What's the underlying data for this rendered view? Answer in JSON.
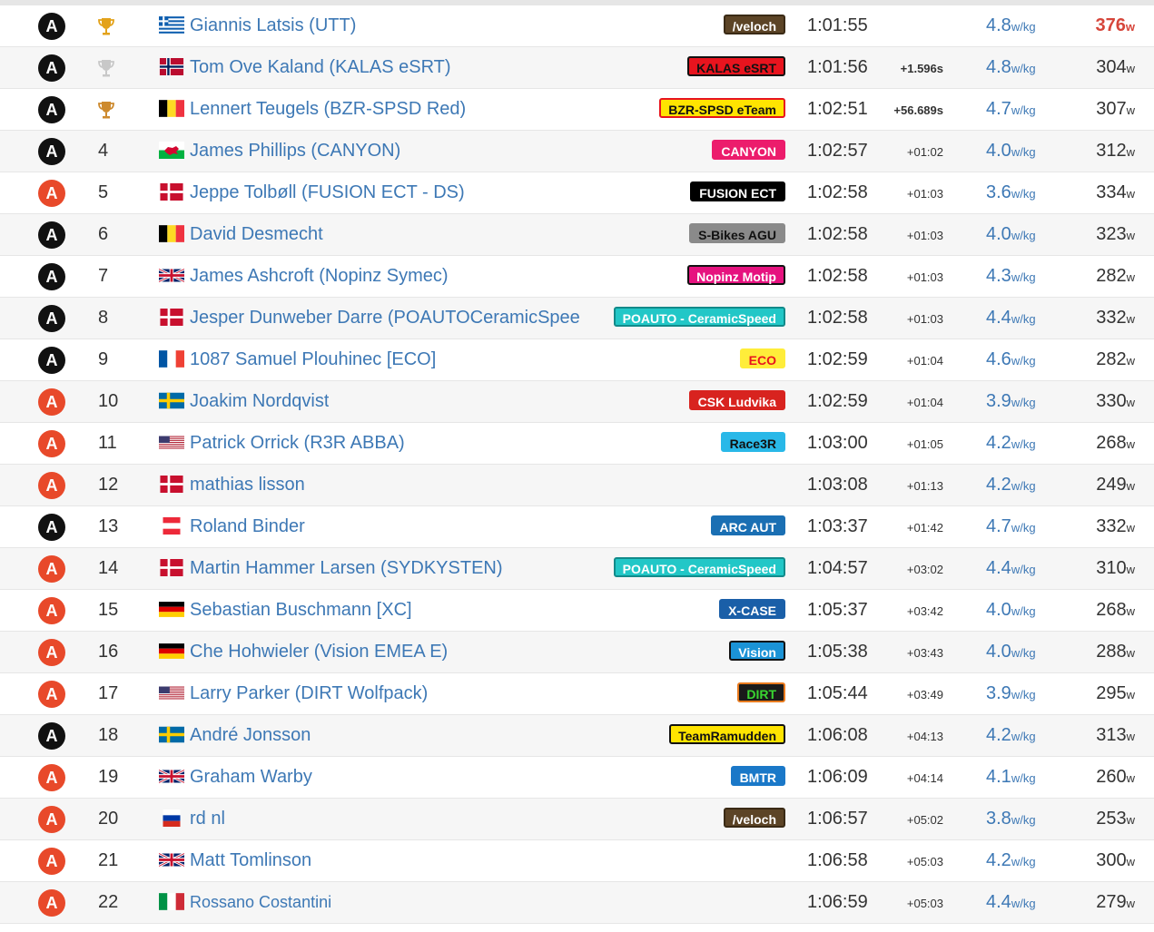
{
  "unit_wkg": "w/kg",
  "unit_w": "w",
  "colors": {
    "link": "#3d78b5",
    "cat_black": "#111111",
    "cat_orange": "#e8492a",
    "gold": "#e3a21a",
    "silver": "#c8c8c8",
    "bronze": "#cd8a2e"
  },
  "rows": [
    {
      "cat": "A",
      "cat_color": "black",
      "pos": "",
      "medal": "gold",
      "flag": "greece",
      "name": "Giannis Latsis (UTT)",
      "team": "/veloch",
      "team_bg": "#5c4426",
      "team_fg": "#ffffff",
      "team_border": "#3a2a15",
      "time": "1:01:55",
      "gap": "",
      "gap_bold": false,
      "wkg": "4.8",
      "watts": "376",
      "watts_red": true
    },
    {
      "cat": "A",
      "cat_color": "black",
      "pos": "",
      "medal": "silver",
      "flag": "norway",
      "name": "Tom Ove Kaland (KALAS eSRT)",
      "team": "KALAS eSRT",
      "team_bg": "#e8141e",
      "team_fg": "#111111",
      "team_border": "#111111",
      "time": "1:01:56",
      "gap": "+1.596s",
      "gap_bold": true,
      "wkg": "4.8",
      "watts": "304",
      "watts_red": false
    },
    {
      "cat": "A",
      "cat_color": "black",
      "pos": "",
      "medal": "bronze",
      "flag": "belgium",
      "name": "Lennert Teugels (BZR-SPSD Red)",
      "team": "BZR-SPSD eTeam",
      "team_bg": "#ffe400",
      "team_fg": "#111111",
      "team_border": "#e8141e",
      "time": "1:02:51",
      "gap": "+56.689s",
      "gap_bold": true,
      "wkg": "4.7",
      "watts": "307",
      "watts_red": false
    },
    {
      "cat": "A",
      "cat_color": "black",
      "pos": "4",
      "medal": "",
      "flag": "wales",
      "name": "James Phillips (CANYON)",
      "team": "CANYON",
      "team_bg": "#ec1c6c",
      "team_fg": "#ffffff",
      "team_border": "#ec1c6c",
      "time": "1:02:57",
      "gap": "+01:02",
      "gap_bold": false,
      "wkg": "4.0",
      "watts": "312",
      "watts_red": false
    },
    {
      "cat": "A",
      "cat_color": "orange",
      "pos": "5",
      "medal": "",
      "flag": "denmark",
      "name": "Jeppe Tolbøll (FUSION ECT - DS)",
      "team": "FUSION ECT",
      "team_bg": "#000000",
      "team_fg": "#ffffff",
      "team_border": "#000000",
      "time": "1:02:58",
      "gap": "+01:03",
      "gap_bold": false,
      "wkg": "3.6",
      "watts": "334",
      "watts_red": false
    },
    {
      "cat": "A",
      "cat_color": "black",
      "pos": "6",
      "medal": "",
      "flag": "belgium",
      "name": "David Desmecht",
      "team": "S-Bikes AGU",
      "team_bg": "#8a8a8a",
      "team_fg": "#111111",
      "team_border": "#8a8a8a",
      "time": "1:02:58",
      "gap": "+01:03",
      "gap_bold": false,
      "wkg": "4.0",
      "watts": "323",
      "watts_red": false
    },
    {
      "cat": "A",
      "cat_color": "black",
      "pos": "7",
      "medal": "",
      "flag": "uk",
      "name": "James Ashcroft (Nopinz Symec)",
      "team": "Nopinz Motip",
      "team_bg": "#e6127f",
      "team_fg": "#ffffff",
      "team_border": "#111111",
      "time": "1:02:58",
      "gap": "+01:03",
      "gap_bold": false,
      "wkg": "4.3",
      "watts": "282",
      "watts_red": false
    },
    {
      "cat": "A",
      "cat_color": "black",
      "pos": "8",
      "medal": "",
      "flag": "denmark",
      "name": "Jesper Dunweber Darre (POAUTOCeramicSpee",
      "team": "POAUTO - CeramicSpeed",
      "team_bg": "#22c7c7",
      "team_fg": "#ffffff",
      "team_border": "#128a8a",
      "time": "1:02:58",
      "gap": "+01:03",
      "gap_bold": false,
      "wkg": "4.4",
      "watts": "332",
      "watts_red": false
    },
    {
      "cat": "A",
      "cat_color": "black",
      "pos": "9",
      "medal": "",
      "flag": "france",
      "name": "1087 Samuel Plouhinec [ECO]",
      "team": "ECO",
      "team_bg": "#ffed3a",
      "team_fg": "#e8141e",
      "team_border": "#ffed3a",
      "time": "1:02:59",
      "gap": "+01:04",
      "gap_bold": false,
      "wkg": "4.6",
      "watts": "282",
      "watts_red": false
    },
    {
      "cat": "A",
      "cat_color": "orange",
      "pos": "10",
      "medal": "",
      "flag": "sweden",
      "name": "Joakim Nordqvist",
      "team": "CSK Ludvika",
      "team_bg": "#d8231f",
      "team_fg": "#ffffff",
      "team_border": "#d8231f",
      "time": "1:02:59",
      "gap": "+01:04",
      "gap_bold": false,
      "wkg": "3.9",
      "watts": "330",
      "watts_red": false
    },
    {
      "cat": "A",
      "cat_color": "orange",
      "pos": "11",
      "medal": "",
      "flag": "usa",
      "name": "Patrick Orrick (R3R ABBA)",
      "team": "Race3R",
      "team_bg": "#29b8e8",
      "team_fg": "#111111",
      "team_border": "#29b8e8",
      "time": "1:03:00",
      "gap": "+01:05",
      "gap_bold": false,
      "wkg": "4.2",
      "watts": "268",
      "watts_red": false
    },
    {
      "cat": "A",
      "cat_color": "orange",
      "pos": "12",
      "medal": "",
      "flag": "denmark",
      "name": "mathias lisson",
      "team": "",
      "team_bg": "",
      "team_fg": "",
      "team_border": "",
      "time": "1:03:08",
      "gap": "+01:13",
      "gap_bold": false,
      "wkg": "4.2",
      "watts": "249",
      "watts_red": false
    },
    {
      "cat": "A",
      "cat_color": "black",
      "pos": "13",
      "medal": "",
      "flag": "austria",
      "name": "Roland Binder",
      "team": "ARC AUT",
      "team_bg": "#1a6fb3",
      "team_fg": "#ffffff",
      "team_border": "#1a6fb3",
      "time": "1:03:37",
      "gap": "+01:42",
      "gap_bold": false,
      "wkg": "4.7",
      "watts": "332",
      "watts_red": false
    },
    {
      "cat": "A",
      "cat_color": "orange",
      "pos": "14",
      "medal": "",
      "flag": "denmark",
      "name": "Martin Hammer Larsen (SYDKYSTEN)",
      "team": "POAUTO - CeramicSpeed",
      "team_bg": "#22c7c7",
      "team_fg": "#ffffff",
      "team_border": "#128a8a",
      "time": "1:04:57",
      "gap": "+03:02",
      "gap_bold": false,
      "wkg": "4.4",
      "watts": "310",
      "watts_red": false
    },
    {
      "cat": "A",
      "cat_color": "orange",
      "pos": "15",
      "medal": "",
      "flag": "germany",
      "name": "Sebastian Buschmann [XC]",
      "team": "X-CASE",
      "team_bg": "#1a5fa8",
      "team_fg": "#ffffff",
      "team_border": "#1a5fa8",
      "time": "1:05:37",
      "gap": "+03:42",
      "gap_bold": false,
      "wkg": "4.0",
      "watts": "268",
      "watts_red": false
    },
    {
      "cat": "A",
      "cat_color": "orange",
      "pos": "16",
      "medal": "",
      "flag": "germany",
      "name": "Che Hohwieler (Vision EMEA E)",
      "team": "Vision",
      "team_bg": "#1b93d6",
      "team_fg": "#ffffff",
      "team_border": "#111111",
      "time": "1:05:38",
      "gap": "+03:43",
      "gap_bold": false,
      "wkg": "4.0",
      "watts": "288",
      "watts_red": false
    },
    {
      "cat": "A",
      "cat_color": "orange",
      "pos": "17",
      "medal": "",
      "flag": "usa",
      "name": "Larry Parker (DIRT Wolfpack)",
      "team": "DIRT",
      "team_bg": "#1a1a1a",
      "team_fg": "#39d631",
      "team_border": "#e87a1e",
      "time": "1:05:44",
      "gap": "+03:49",
      "gap_bold": false,
      "wkg": "3.9",
      "watts": "295",
      "watts_red": false
    },
    {
      "cat": "A",
      "cat_color": "black",
      "pos": "18",
      "medal": "",
      "flag": "sweden",
      "name": "André Jonsson",
      "team": "TeamRamudden",
      "team_bg": "#ffe400",
      "team_fg": "#111111",
      "team_border": "#111111",
      "time": "1:06:08",
      "gap": "+04:13",
      "gap_bold": false,
      "wkg": "4.2",
      "watts": "313",
      "watts_red": false
    },
    {
      "cat": "A",
      "cat_color": "orange",
      "pos": "19",
      "medal": "",
      "flag": "uk",
      "name": "Graham Warby",
      "team": "BMTR",
      "team_bg": "#1a78c8",
      "team_fg": "#ffffff",
      "team_border": "#1a78c8",
      "time": "1:06:09",
      "gap": "+04:14",
      "gap_bold": false,
      "wkg": "4.1",
      "watts": "260",
      "watts_red": false
    },
    {
      "cat": "A",
      "cat_color": "orange",
      "pos": "20",
      "medal": "",
      "flag": "russia",
      "name": "rd nl",
      "team": "/veloch",
      "team_bg": "#5c4426",
      "team_fg": "#ffffff",
      "team_border": "#3a2a15",
      "time": "1:06:57",
      "gap": "+05:02",
      "gap_bold": false,
      "wkg": "3.8",
      "watts": "253",
      "watts_red": false
    },
    {
      "cat": "A",
      "cat_color": "orange",
      "pos": "21",
      "medal": "",
      "flag": "uk",
      "name": "Matt Tomlinson",
      "team": "",
      "team_bg": "",
      "team_fg": "",
      "team_border": "",
      "time": "1:06:58",
      "gap": "+05:03",
      "gap_bold": false,
      "wkg": "4.2",
      "watts": "300",
      "watts_red": false
    },
    {
      "cat": "A",
      "cat_color": "orange",
      "pos": "22",
      "medal": "",
      "flag": "italy",
      "name": "Rossano Costantini",
      "team": "",
      "team_bg": "",
      "team_fg": "",
      "team_border": "",
      "time": "1:06:59",
      "gap": "+05:03",
      "gap_bold": false,
      "wkg": "4.4",
      "watts": "279",
      "watts_red": false
    }
  ]
}
